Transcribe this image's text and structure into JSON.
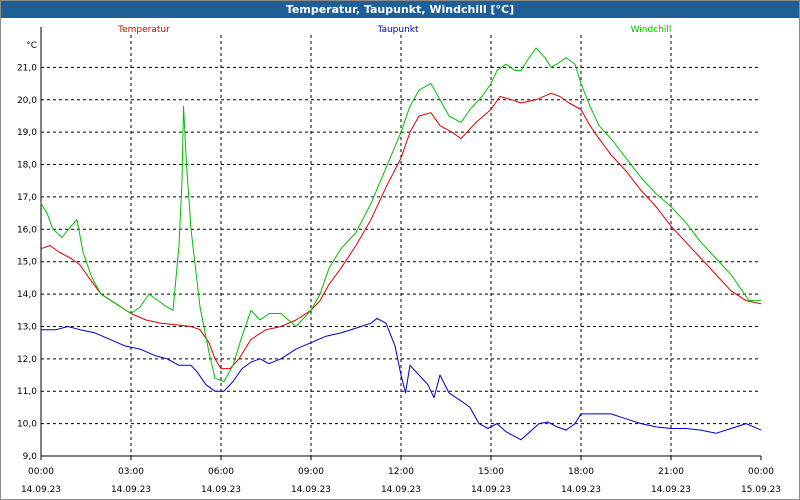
{
  "window": {
    "title": "Temperatur, Taupunkt, Windchill [°C]"
  },
  "chart_data": {
    "type": "line",
    "title": "Temperatur, Taupunkt, Windchill [°C]",
    "ylabel": "°C",
    "ylim": [
      9.0,
      22.0
    ],
    "yticks": [
      "9,0",
      "10,0",
      "11,0",
      "12,0",
      "13,0",
      "14,0",
      "15,0",
      "16,0",
      "17,0",
      "18,0",
      "19,0",
      "20,0",
      "21,0"
    ],
    "xlim": [
      0,
      24
    ],
    "xticks": [
      {
        "time": "00:00",
        "date": "14.09.23"
      },
      {
        "time": "03:00",
        "date": "14.09.23"
      },
      {
        "time": "06:00",
        "date": "14.09.23"
      },
      {
        "time": "09:00",
        "date": "14.09.23"
      },
      {
        "time": "12:00",
        "date": "14.09.23"
      },
      {
        "time": "15:00",
        "date": "14.09.23"
      },
      {
        "time": "18:00",
        "date": "14.09.23"
      },
      {
        "time": "21:00",
        "date": "14.09.23"
      },
      {
        "time": "00:00",
        "date": "15.09.23"
      }
    ],
    "grid": true,
    "legend_position": "top",
    "series": [
      {
        "name": "Temperatur",
        "color": "#e00000",
        "points": [
          [
            0,
            15.4
          ],
          [
            0.3,
            15.5
          ],
          [
            0.6,
            15.3
          ],
          [
            1.0,
            15.1
          ],
          [
            1.3,
            14.9
          ],
          [
            1.6,
            14.5
          ],
          [
            2.0,
            14.0
          ],
          [
            2.5,
            13.7
          ],
          [
            3.0,
            13.4
          ],
          [
            3.5,
            13.2
          ],
          [
            4.0,
            13.1
          ],
          [
            4.5,
            13.05
          ],
          [
            5.0,
            13.0
          ],
          [
            5.3,
            12.9
          ],
          [
            5.6,
            12.5
          ],
          [
            5.8,
            12.0
          ],
          [
            6.0,
            11.7
          ],
          [
            6.3,
            11.7
          ],
          [
            6.6,
            12.0
          ],
          [
            7.0,
            12.6
          ],
          [
            7.5,
            12.9
          ],
          [
            8.0,
            13.0
          ],
          [
            8.5,
            13.2
          ],
          [
            9.0,
            13.5
          ],
          [
            9.3,
            13.8
          ],
          [
            9.6,
            14.3
          ],
          [
            10.0,
            14.8
          ],
          [
            10.5,
            15.5
          ],
          [
            11.0,
            16.3
          ],
          [
            11.5,
            17.3
          ],
          [
            12.0,
            18.2
          ],
          [
            12.3,
            19.0
          ],
          [
            12.6,
            19.5
          ],
          [
            13.0,
            19.6
          ],
          [
            13.3,
            19.2
          ],
          [
            13.7,
            19.0
          ],
          [
            14.0,
            18.8
          ],
          [
            14.5,
            19.3
          ],
          [
            15.0,
            19.7
          ],
          [
            15.3,
            20.1
          ],
          [
            15.7,
            20.0
          ],
          [
            16.0,
            19.9
          ],
          [
            16.5,
            20.0
          ],
          [
            17.0,
            20.2
          ],
          [
            17.3,
            20.1
          ],
          [
            17.6,
            19.9
          ],
          [
            18.0,
            19.7
          ],
          [
            18.3,
            19.2
          ],
          [
            18.6,
            18.8
          ],
          [
            19.0,
            18.3
          ],
          [
            19.5,
            17.8
          ],
          [
            20.0,
            17.2
          ],
          [
            20.5,
            16.7
          ],
          [
            21.0,
            16.1
          ],
          [
            21.5,
            15.6
          ],
          [
            22.0,
            15.1
          ],
          [
            22.5,
            14.6
          ],
          [
            23.0,
            14.1
          ],
          [
            23.5,
            13.8
          ],
          [
            24.0,
            13.7
          ]
        ]
      },
      {
        "name": "Taupunkt",
        "color": "#0000c8",
        "points": [
          [
            0,
            12.9
          ],
          [
            0.5,
            12.9
          ],
          [
            0.9,
            13.0
          ],
          [
            1.3,
            12.9
          ],
          [
            1.8,
            12.8
          ],
          [
            2.3,
            12.6
          ],
          [
            2.8,
            12.4
          ],
          [
            3.3,
            12.3
          ],
          [
            3.8,
            12.1
          ],
          [
            4.2,
            12.0
          ],
          [
            4.6,
            11.8
          ],
          [
            5.0,
            11.8
          ],
          [
            5.2,
            11.6
          ],
          [
            5.5,
            11.2
          ],
          [
            5.8,
            11.0
          ],
          [
            6.1,
            11.0
          ],
          [
            6.4,
            11.3
          ],
          [
            6.7,
            11.7
          ],
          [
            7.0,
            11.9
          ],
          [
            7.3,
            12.0
          ],
          [
            7.6,
            11.85
          ],
          [
            8.0,
            12.0
          ],
          [
            8.5,
            12.3
          ],
          [
            9.0,
            12.5
          ],
          [
            9.5,
            12.7
          ],
          [
            10.0,
            12.8
          ],
          [
            10.5,
            12.95
          ],
          [
            11.0,
            13.1
          ],
          [
            11.2,
            13.25
          ],
          [
            11.5,
            13.1
          ],
          [
            11.8,
            12.4
          ],
          [
            12.0,
            11.5
          ],
          [
            12.15,
            10.95
          ],
          [
            12.3,
            11.8
          ],
          [
            12.6,
            11.5
          ],
          [
            12.9,
            11.2
          ],
          [
            13.1,
            10.8
          ],
          [
            13.3,
            11.5
          ],
          [
            13.6,
            10.95
          ],
          [
            14.0,
            10.7
          ],
          [
            14.3,
            10.5
          ],
          [
            14.6,
            10.0
          ],
          [
            14.9,
            9.85
          ],
          [
            15.2,
            10.0
          ],
          [
            15.5,
            9.75
          ],
          [
            15.8,
            9.6
          ],
          [
            16.0,
            9.5
          ],
          [
            16.3,
            9.75
          ],
          [
            16.6,
            10.0
          ],
          [
            16.9,
            10.05
          ],
          [
            17.2,
            9.9
          ],
          [
            17.5,
            9.8
          ],
          [
            17.8,
            10.0
          ],
          [
            18.0,
            10.3
          ],
          [
            18.5,
            10.3
          ],
          [
            19.0,
            10.3
          ],
          [
            19.5,
            10.15
          ],
          [
            20.0,
            10.0
          ],
          [
            20.5,
            9.9
          ],
          [
            21.0,
            9.85
          ],
          [
            21.5,
            9.85
          ],
          [
            22.0,
            9.8
          ],
          [
            22.5,
            9.7
          ],
          [
            23.0,
            9.85
          ],
          [
            23.5,
            10.0
          ],
          [
            24.0,
            9.8
          ]
        ]
      },
      {
        "name": "Windchill",
        "color": "#00c000",
        "points": [
          [
            0,
            16.8
          ],
          [
            0.2,
            16.5
          ],
          [
            0.4,
            16.0
          ],
          [
            0.7,
            15.75
          ],
          [
            1.0,
            16.1
          ],
          [
            1.2,
            16.3
          ],
          [
            1.4,
            15.3
          ],
          [
            1.7,
            14.5
          ],
          [
            2.0,
            14.0
          ],
          [
            2.5,
            13.7
          ],
          [
            3.0,
            13.4
          ],
          [
            3.3,
            13.6
          ],
          [
            3.6,
            14.0
          ],
          [
            3.9,
            13.8
          ],
          [
            4.2,
            13.6
          ],
          [
            4.4,
            13.5
          ],
          [
            4.6,
            15.5
          ],
          [
            4.7,
            17.5
          ],
          [
            4.75,
            19.8
          ],
          [
            4.85,
            18.0
          ],
          [
            5.0,
            16.0
          ],
          [
            5.3,
            13.6
          ],
          [
            5.6,
            12.2
          ],
          [
            5.8,
            11.4
          ],
          [
            6.1,
            11.3
          ],
          [
            6.4,
            11.8
          ],
          [
            6.7,
            12.7
          ],
          [
            7.0,
            13.5
          ],
          [
            7.3,
            13.2
          ],
          [
            7.6,
            13.4
          ],
          [
            8.0,
            13.4
          ],
          [
            8.5,
            13.0
          ],
          [
            9.0,
            13.5
          ],
          [
            9.3,
            14.0
          ],
          [
            9.6,
            14.8
          ],
          [
            10.0,
            15.4
          ],
          [
            10.5,
            15.9
          ],
          [
            11.0,
            16.8
          ],
          [
            11.5,
            17.9
          ],
          [
            12.0,
            19.0
          ],
          [
            12.3,
            19.8
          ],
          [
            12.6,
            20.3
          ],
          [
            13.0,
            20.5
          ],
          [
            13.3,
            20.0
          ],
          [
            13.6,
            19.5
          ],
          [
            14.0,
            19.3
          ],
          [
            14.3,
            19.7
          ],
          [
            14.7,
            20.1
          ],
          [
            15.0,
            20.5
          ],
          [
            15.2,
            20.9
          ],
          [
            15.5,
            21.1
          ],
          [
            15.8,
            20.9
          ],
          [
            16.0,
            20.9
          ],
          [
            16.2,
            21.2
          ],
          [
            16.5,
            21.6
          ],
          [
            16.8,
            21.3
          ],
          [
            17.0,
            21.0
          ],
          [
            17.2,
            21.1
          ],
          [
            17.5,
            21.3
          ],
          [
            17.8,
            21.1
          ],
          [
            18.0,
            20.5
          ],
          [
            18.3,
            19.8
          ],
          [
            18.6,
            19.2
          ],
          [
            19.0,
            18.8
          ],
          [
            19.5,
            18.2
          ],
          [
            20.0,
            17.6
          ],
          [
            20.5,
            17.1
          ],
          [
            21.0,
            16.7
          ],
          [
            21.5,
            16.2
          ],
          [
            22.0,
            15.6
          ],
          [
            22.5,
            15.1
          ],
          [
            23.0,
            14.6
          ],
          [
            23.3,
            14.2
          ],
          [
            23.6,
            13.8
          ],
          [
            24.0,
            13.8
          ]
        ]
      }
    ]
  }
}
